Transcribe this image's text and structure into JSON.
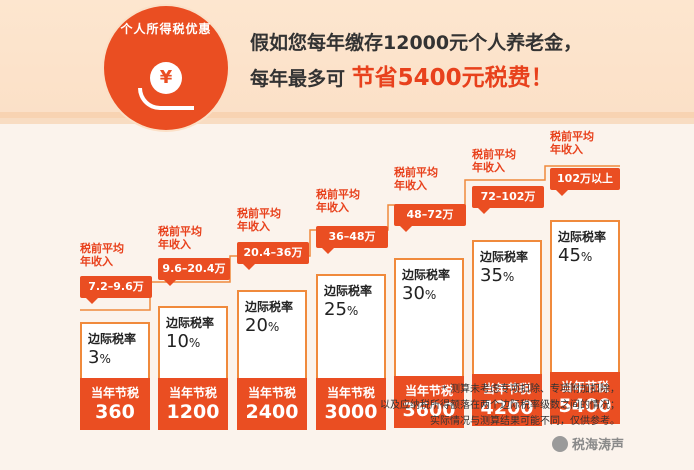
{
  "badge": {
    "text": "个人所得税优惠",
    "coin_symbol": "¥"
  },
  "headline": {
    "line1": "假如您每年缴存12000元个人养老金，",
    "line2_prefix": "每年最多可",
    "line2_highlight": "节省5400元税费！"
  },
  "common": {
    "income_label": "税前平均年收入",
    "rate_label": "边际税率",
    "save_label": "当年节税"
  },
  "steps": [
    {
      "income": "7.2–9.6万",
      "rate": "3",
      "save": "360"
    },
    {
      "income": "9.6–20.4万",
      "rate": "10",
      "save": "1200"
    },
    {
      "income": "20.4–36万",
      "rate": "20",
      "save": "2400"
    },
    {
      "income": "36–48万",
      "rate": "25",
      "save": "3000"
    },
    {
      "income": "48–72万",
      "rate": "30",
      "save": "3600"
    },
    {
      "income": "72–102万",
      "rate": "35",
      "save": "4200"
    },
    {
      "income": "102万以上",
      "rate": "45",
      "save": "5400"
    }
  ],
  "notes": [
    "* 测算未考虑专项扣除、专项附加扣除，",
    "以及应纳税所得额落在两个边际税率级数之间的情况；",
    "实际情况与测算结果可能不同，仅供参考。"
  ],
  "watermark": "税海涛声",
  "colors": {
    "accent": "#ea4e22",
    "border": "#f08a3c",
    "banner": "#fbe0c7"
  }
}
